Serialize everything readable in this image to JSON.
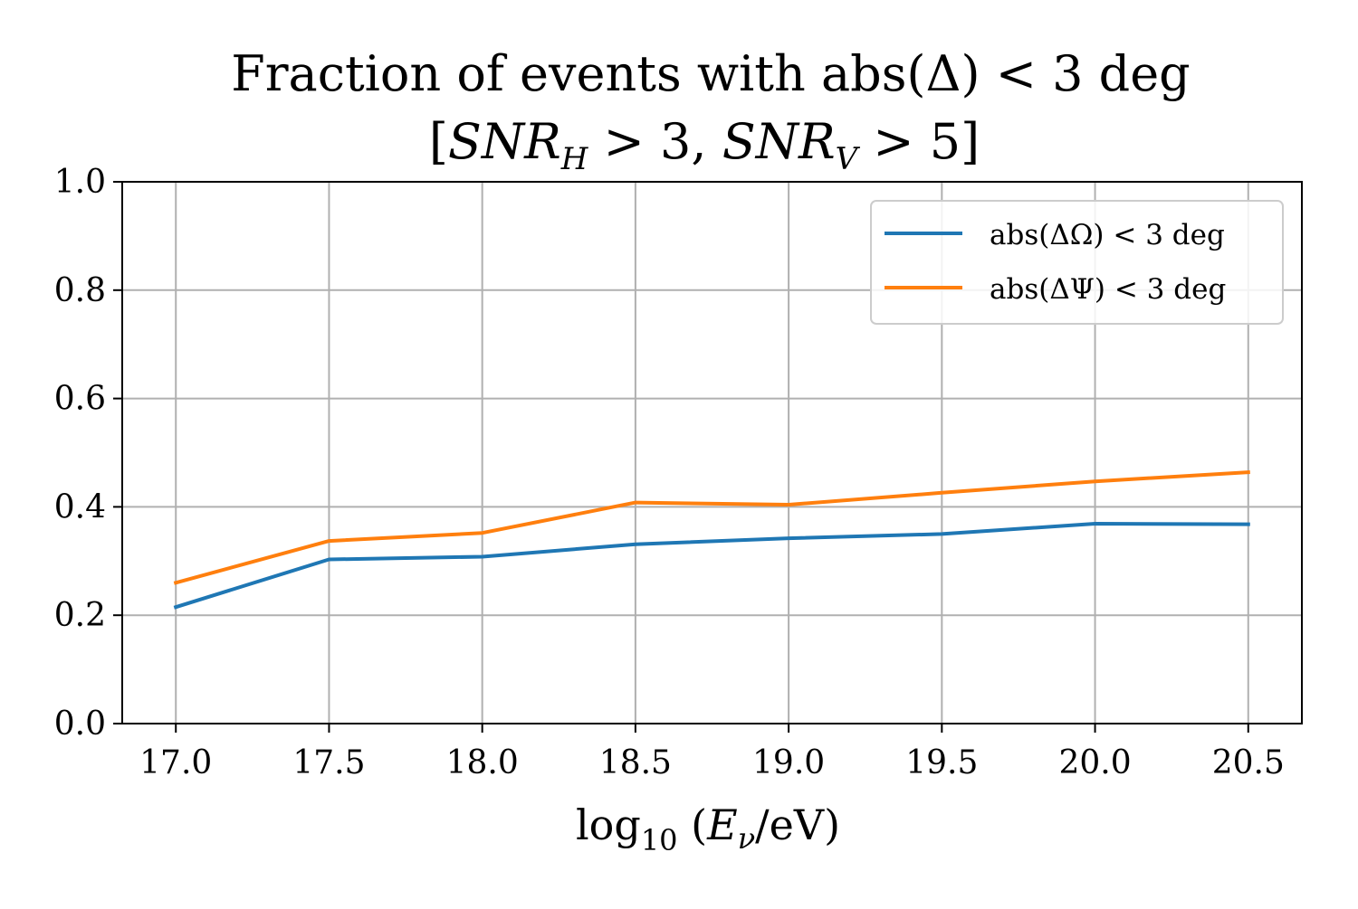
{
  "chart_data": {
    "type": "line",
    "title_line1": "Fraction of events with abs(Δ) < 3 deg",
    "title_line2_prefix": "[",
    "title_line2_snr_h": "SNR",
    "title_line2_sub_h": "H",
    "title_line2_mid": " > 3, ",
    "title_line2_snr_v": "SNR",
    "title_line2_sub_v": "V",
    "title_line2_suffix": " > 5]",
    "xlabel_log": "log",
    "xlabel_sub": "10",
    "xlabel_paren_open": " (",
    "xlabel_E": "E",
    "xlabel_nu": "ν",
    "xlabel_rest": "/eV)",
    "ylabel": "",
    "xlim": [
      16.825,
      20.675
    ],
    "ylim": [
      0.0,
      1.0
    ],
    "x_ticks": [
      17.0,
      17.5,
      18.0,
      18.5,
      19.0,
      19.5,
      20.0,
      20.5
    ],
    "x_tick_labels": [
      "17.0",
      "17.5",
      "18.0",
      "18.5",
      "19.0",
      "19.5",
      "20.0",
      "20.5"
    ],
    "y_ticks": [
      0.0,
      0.2,
      0.4,
      0.6,
      0.8,
      1.0
    ],
    "y_tick_labels": [
      "0.0",
      "0.2",
      "0.4",
      "0.6",
      "0.8",
      "1.0"
    ],
    "grid": true,
    "legend_position": "top-right",
    "x": [
      17.0,
      17.5,
      18.0,
      18.5,
      19.0,
      19.5,
      20.0,
      20.5
    ],
    "series": [
      {
        "name": "abs(ΔΩ) < 3 deg",
        "color": "#1f77b4",
        "values": [
          0.215,
          0.303,
          0.308,
          0.331,
          0.342,
          0.35,
          0.369,
          0.368
        ]
      },
      {
        "name": "abs(ΔΨ) < 3 deg",
        "color": "#ff7f0e",
        "values": [
          0.26,
          0.337,
          0.352,
          0.408,
          0.404,
          0.426,
          0.447,
          0.464
        ]
      }
    ]
  }
}
